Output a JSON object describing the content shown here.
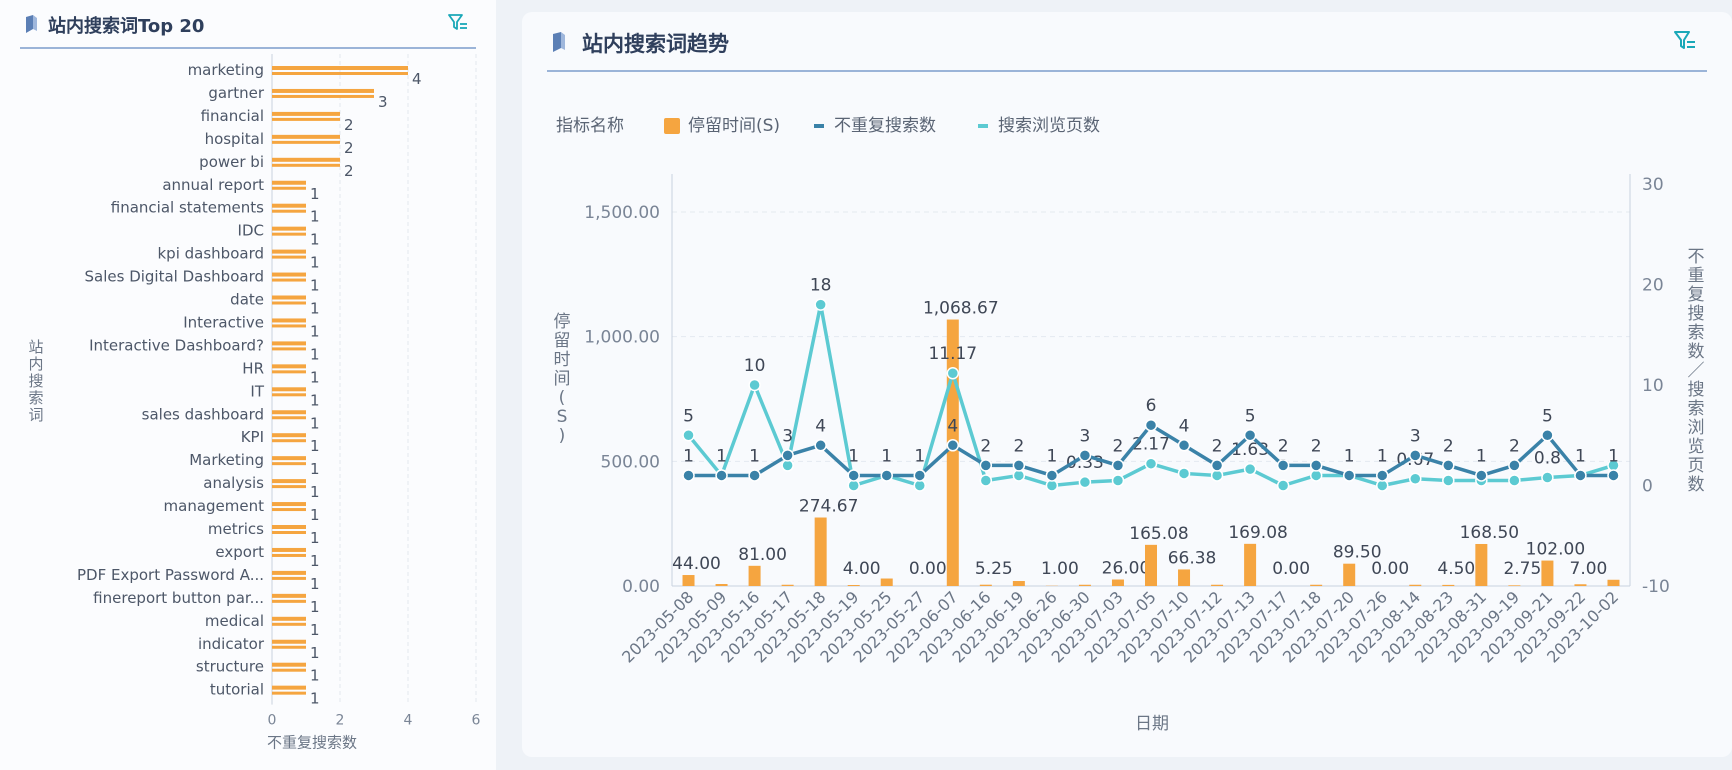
{
  "left_panel": {
    "title": "站内搜索词Top 20"
  },
  "right_panel": {
    "title": "站内搜索词趋势"
  },
  "colors": {
    "bar": "#f5a540",
    "line_unique": "#3a82a8",
    "line_views": "#5ccad2",
    "title": "#2f3f5c",
    "accent_icon": "#1aa8b8"
  },
  "icons": {
    "title_icon": "bookmark-icon",
    "filter_icon": "filter-icon"
  },
  "chart_data": [
    {
      "type": "bar",
      "orientation": "horizontal",
      "categories": [
        "marketing",
        "gartner",
        "financial",
        "hospital",
        "power bi",
        "annual report",
        "financial statements",
        "IDC",
        "kpi dashboard",
        "Sales Digital Dashboard",
        "date",
        "Interactive",
        "Interactive Dashboard?",
        "HR",
        "IT",
        "sales dashboard",
        "KPI",
        "Marketing",
        "analysis",
        "management",
        "metrics",
        "export",
        "PDF Export Password A...",
        "finereport button par...",
        "medical",
        "indicator",
        "structure",
        "tutorial"
      ],
      "series": [
        {
          "name": "",
          "values": [
            4,
            3,
            2,
            2,
            2,
            1,
            1,
            1,
            1,
            1,
            1,
            1,
            1,
            1,
            1,
            1,
            1,
            1,
            1,
            1,
            1,
            1,
            1,
            1,
            1,
            1,
            1,
            1
          ]
        }
      ],
      "xlim": [
        0,
        6
      ],
      "xticks": [
        "0",
        "2",
        "4",
        "6"
      ],
      "xlabel": "不重复搜索数",
      "ylabel": "站内搜索词",
      "grid": "vertical dashed"
    },
    {
      "type": "bar+line",
      "legend_title": "指标名称",
      "legend_position": "top-left",
      "categories": [
        "2023-05-08",
        "2023-05-09",
        "2023-05-16",
        "2023-05-17",
        "2023-05-18",
        "2023-05-19",
        "2023-05-25",
        "2023-05-27",
        "2023-06-07",
        "2023-06-16",
        "2023-06-19",
        "2023-06-26",
        "2023-06-30",
        "2023-07-03",
        "2023-07-05",
        "2023-07-10",
        "2023-07-12",
        "2023-07-13",
        "2023-07-17",
        "2023-07-18",
        "2023-07-20",
        "2023-07-26",
        "2023-08-14",
        "2023-08-23",
        "2023-08-31",
        "2023-09-19",
        "2023-09-21",
        "2023-09-22",
        "2023-10-02"
      ],
      "series": [
        {
          "name": "停留时间(S)",
          "type": "bar",
          "axis": "left",
          "values": [
            44.0,
            8,
            81.0,
            5,
            274.67,
            4.0,
            30,
            0.0,
            1068.67,
            5.25,
            20,
            1.0,
            5,
            26.0,
            165.08,
            66.38,
            5,
            169.08,
            0.0,
            5,
            89.5,
            0.0,
            5,
            4.5,
            168.5,
            2.75,
            102.0,
            7.0,
            25
          ],
          "labels": [
            "44.00",
            "",
            "81.00",
            "",
            "274.67",
            "4.00",
            "",
            "0.00",
            "1,068.67",
            "5.25",
            "",
            "1.00",
            "",
            "26.00",
            "165.08",
            "66.38",
            "",
            "169.08",
            "0.00",
            "",
            "89.50",
            "0.00",
            "",
            "4.50",
            "168.50",
            "2.75",
            "102.00",
            "7.00",
            ""
          ]
        },
        {
          "name": "不重复搜索数",
          "type": "line",
          "axis": "right",
          "values": [
            1,
            1,
            1,
            3,
            4,
            1,
            1,
            1,
            4,
            2,
            2,
            1,
            3,
            2,
            6,
            4,
            2,
            5,
            2,
            2,
            1,
            1,
            3,
            2,
            1,
            2,
            5,
            1,
            1
          ],
          "labels": [
            "1",
            "1",
            "1",
            "3",
            "4",
            "1",
            "1",
            "1",
            "4",
            "2",
            "2",
            "1",
            "3",
            "2",
            "6",
            "4",
            "2",
            "5",
            "2",
            "2",
            "1",
            "1",
            "3",
            "2",
            "1",
            "2",
            "5",
            "1",
            "1"
          ]
        },
        {
          "name": "搜索浏览页数",
          "type": "line",
          "axis": "right",
          "values": [
            5,
            1,
            10,
            2,
            18,
            0,
            1,
            0,
            11.17,
            0.5,
            1,
            0,
            0.33,
            0.5,
            2.17,
            1.2,
            1,
            1.63,
            0,
            1,
            1,
            0,
            0.67,
            0.5,
            0.5,
            0.5,
            0.8,
            1,
            2
          ],
          "labels": [
            "5",
            "",
            "10",
            "",
            "18",
            "",
            "",
            "",
            "11.17",
            "",
            "",
            "",
            "0.33",
            "",
            "2.17",
            "",
            "",
            "1.63",
            "0",
            "",
            "",
            "",
            "0.67",
            "",
            "",
            "",
            "0.8",
            "",
            ""
          ]
        }
      ],
      "xlabel": "日期",
      "ylabel_left": "停留时间(S)",
      "ylabel_right": "不重复搜索数／搜索浏览页数",
      "ylim_left": [
        0,
        1500
      ],
      "yticks_left": [
        "0.00",
        "500.00",
        "1,000.00",
        "1,500.00"
      ],
      "ylim_right": [
        -10,
        30
      ],
      "yticks_right": [
        "-10",
        "0",
        "10",
        "20",
        "30"
      ],
      "grid": "horizontal dashed"
    }
  ]
}
